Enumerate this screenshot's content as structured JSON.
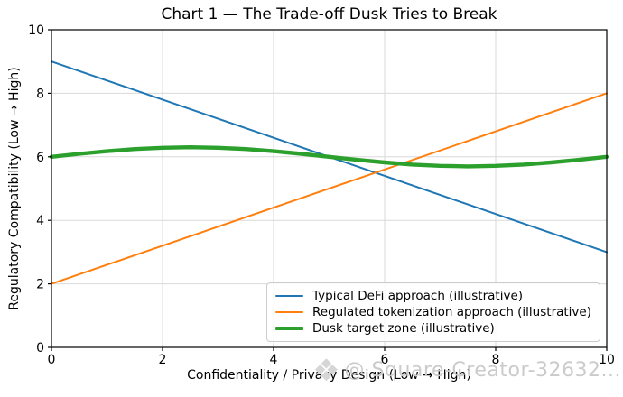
{
  "watermark": {
    "logo_icon": "❖",
    "text": "@ Square-Creator-32632..."
  },
  "chart_data": {
    "type": "line",
    "title": "Chart 1 — The Trade-off Dusk Tries to Break",
    "xlabel": "Confidentiality / Privacy Design (Low → High)",
    "ylabel": "Regulatory Compatibility (Low → High)",
    "xlim": [
      0,
      10
    ],
    "ylim": [
      0,
      10
    ],
    "xticks": [
      0,
      2,
      4,
      6,
      8,
      10
    ],
    "yticks": [
      0,
      2,
      4,
      6,
      8,
      10
    ],
    "grid": true,
    "grid_color": "#d9d9d9",
    "spine_color": "#000000",
    "legend_position": "lower right inside axes",
    "series": [
      {
        "name": "Typical DeFi approach (illustrative)",
        "color": "#1f77b4",
        "line_width": 2,
        "x": [
          0,
          10
        ],
        "y": [
          9,
          3
        ]
      },
      {
        "name": "Regulated tokenization approach (illustrative)",
        "color": "#ff7f0e",
        "line_width": 2,
        "x": [
          0,
          10
        ],
        "y": [
          2,
          8
        ]
      },
      {
        "name": "Dusk target zone (illustrative)",
        "color": "#2ca02c",
        "line_width": 4.4,
        "x": [
          0,
          0.5,
          1,
          1.5,
          2,
          2.5,
          3,
          3.5,
          4,
          4.5,
          5,
          5.5,
          6,
          6.5,
          7,
          7.5,
          8,
          8.5,
          9,
          9.5,
          10
        ],
        "y": [
          6.0,
          6.093,
          6.176,
          6.243,
          6.285,
          6.3,
          6.285,
          6.243,
          6.176,
          6.093,
          6.0,
          5.907,
          5.824,
          5.757,
          5.715,
          5.7,
          5.715,
          5.757,
          5.824,
          5.907,
          6.0
        ]
      }
    ]
  }
}
